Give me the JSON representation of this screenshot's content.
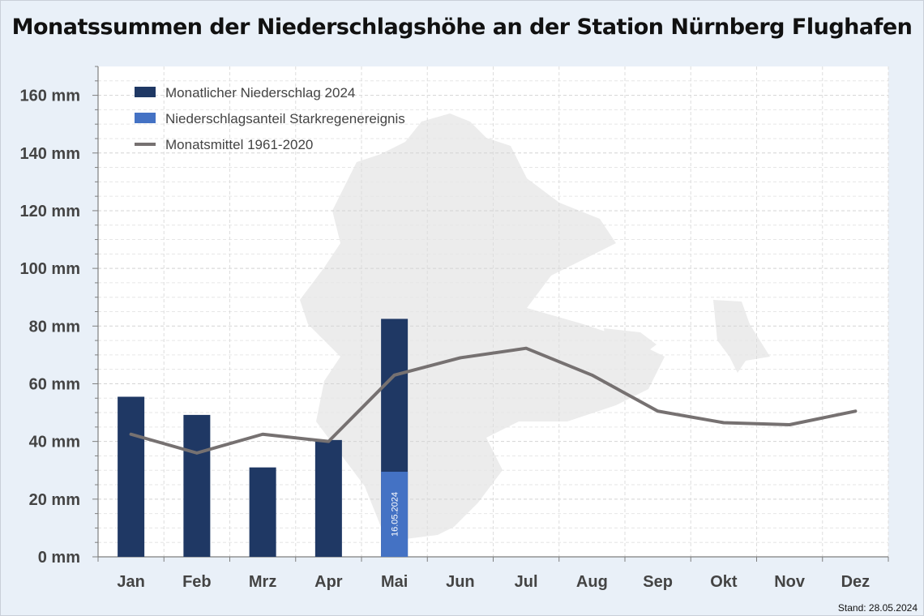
{
  "chart_data": {
    "type": "bar",
    "title": "Monatssummen der Niederschlagshöhe an der Station Nürnberg Flughafen",
    "categories": [
      "Jan",
      "Feb",
      "Mrz",
      "Apr",
      "Mai",
      "Jun",
      "Jul",
      "Aug",
      "Sep",
      "Okt",
      "Nov",
      "Dez"
    ],
    "ylim": [
      0,
      170
    ],
    "ytick_values": [
      0,
      20,
      40,
      60,
      80,
      100,
      120,
      140,
      160
    ],
    "ytick_suffix": " mm",
    "grid": true,
    "legend_position": "top-left",
    "series": [
      {
        "name": "Monatlicher Niederschlag 2024",
        "kind": "bar",
        "color": "#1f3864",
        "values": [
          55.5,
          49.2,
          31,
          40.5,
          82.5,
          null,
          null,
          null,
          null,
          null,
          null,
          null
        ]
      },
      {
        "name": "Niederschlagsanteil Starkregenereignis",
        "kind": "bar",
        "color": "#4472c4",
        "values": [
          0,
          0,
          0,
          0,
          29.5,
          null,
          null,
          null,
          null,
          null,
          null,
          null
        ],
        "annotations": [
          {
            "category": "Mai",
            "text": "16.05.2024"
          }
        ]
      },
      {
        "name": "Monatsmittel 1961-2020",
        "kind": "line",
        "color": "#767171",
        "values": [
          42.5,
          36,
          42.5,
          40,
          63,
          69,
          72.3,
          63,
          50.5,
          46.5,
          45.8,
          50.5
        ]
      }
    ]
  },
  "footer": {
    "stand": "Stand: 28.05.2024"
  }
}
